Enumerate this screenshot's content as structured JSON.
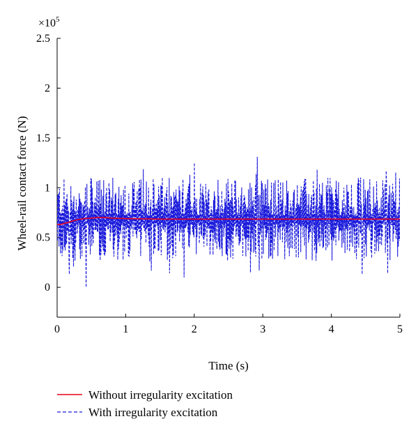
{
  "chart_data": {
    "type": "line",
    "title": "",
    "xlabel": "Time (s)",
    "ylabel": "Wheel-rail contact force (N)",
    "y_multiplier": "×10",
    "y_exponent": "5",
    "xlim": [
      0,
      5
    ],
    "ylim": [
      -0.3,
      2.5
    ],
    "x_ticks": [
      "0",
      "1",
      "2",
      "3",
      "4",
      "5"
    ],
    "y_ticks": [
      "0",
      "0.5",
      "1",
      "1.5",
      "2",
      "2.5"
    ],
    "grid": false,
    "legend_position": "bottom",
    "series": [
      {
        "name": "Without irregularity excitation",
        "color": "#e8001c",
        "style": "solid",
        "x": [
          0,
          0.05,
          0.1,
          0.15,
          0.2,
          0.3,
          0.4,
          0.5,
          0.6,
          0.7,
          0.8,
          1.0,
          1.5,
          2.0,
          2.5,
          3.0,
          3.5,
          4.0,
          4.5,
          5.0
        ],
        "values": [
          0.63,
          0.63,
          0.64,
          0.65,
          0.66,
          0.68,
          0.69,
          0.695,
          0.7,
          0.7,
          0.695,
          0.69,
          0.685,
          0.685,
          0.685,
          0.685,
          0.685,
          0.685,
          0.685,
          0.685
        ]
      },
      {
        "name": "With irregularity excitation",
        "color": "#1a1adb",
        "style": "dashed",
        "x_range": [
          0,
          5
        ],
        "mean": 0.685,
        "min": 0.0,
        "max": 1.3,
        "peaks": [
          {
            "x": 0.18,
            "value": 1.21
          },
          {
            "x": 0.18,
            "value": 0.13
          },
          {
            "x": 0.42,
            "value": 0.0
          },
          {
            "x": 1.85,
            "value": 0.1
          },
          {
            "x": 2.0,
            "value": 1.25
          },
          {
            "x": 2.92,
            "value": 1.31
          },
          {
            "x": 2.95,
            "value": 0.17
          },
          {
            "x": 4.45,
            "value": 0.13
          },
          {
            "x": 4.8,
            "value": 1.17
          },
          {
            "x": 4.82,
            "value": 0.14
          }
        ]
      }
    ]
  }
}
